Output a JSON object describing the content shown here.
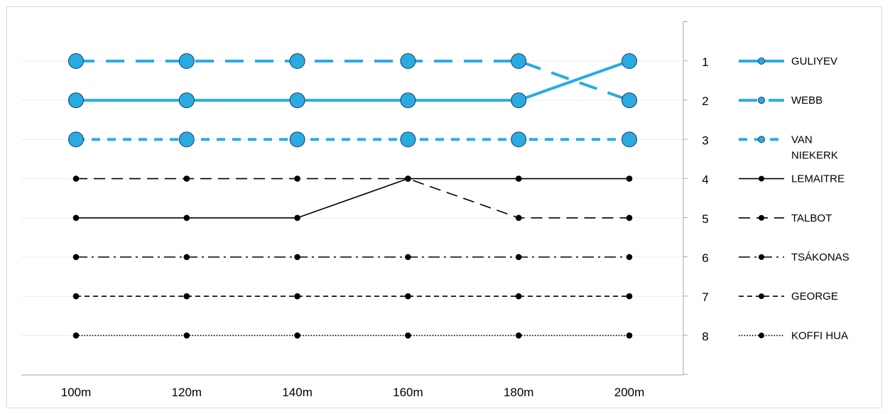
{
  "chart_data": {
    "type": "line",
    "categories": [
      "100m",
      "120m",
      "140m",
      "160m",
      "180m",
      "200m"
    ],
    "y_ticks": [
      "1",
      "2",
      "3",
      "4",
      "5",
      "6",
      "7",
      "8"
    ],
    "ylim": [
      1,
      8
    ],
    "y_axis": "right",
    "y_reversed": true,
    "grid": true,
    "legend_position": "right",
    "series": [
      {
        "name": "GULIYEV",
        "values": [
          2,
          2,
          2,
          2,
          2,
          1
        ],
        "color": "#29abe2",
        "style": "solid-thick",
        "marker": "large-circle"
      },
      {
        "name": "WEBB",
        "values": [
          1,
          1,
          1,
          1,
          1,
          2
        ],
        "color": "#29abe2",
        "style": "long-dash-thick",
        "marker": "large-circle"
      },
      {
        "name": "VAN NIEKERK",
        "values": [
          3,
          3,
          3,
          3,
          3,
          3
        ],
        "color": "#29abe2",
        "style": "dash-thick",
        "marker": "large-circle"
      },
      {
        "name": "LEMAITRE",
        "values": [
          5,
          5,
          5,
          4,
          4,
          4
        ],
        "color": "#000000",
        "style": "solid",
        "marker": "dot"
      },
      {
        "name": "TALBOT",
        "values": [
          4,
          4,
          4,
          4,
          5,
          5
        ],
        "color": "#000000",
        "style": "long-dash",
        "marker": "dot"
      },
      {
        "name": "TSÁKONAS",
        "values": [
          6,
          6,
          6,
          6,
          6,
          6
        ],
        "color": "#000000",
        "style": "dash-dot",
        "marker": "dot"
      },
      {
        "name": "GEORGE",
        "values": [
          7,
          7,
          7,
          7,
          7,
          7
        ],
        "color": "#000000",
        "style": "dash",
        "marker": "dot"
      },
      {
        "name": "KOFFI HUA",
        "values": [
          8,
          8,
          8,
          8,
          8,
          8
        ],
        "color": "#000000",
        "style": "dotted",
        "marker": "dot"
      }
    ]
  }
}
